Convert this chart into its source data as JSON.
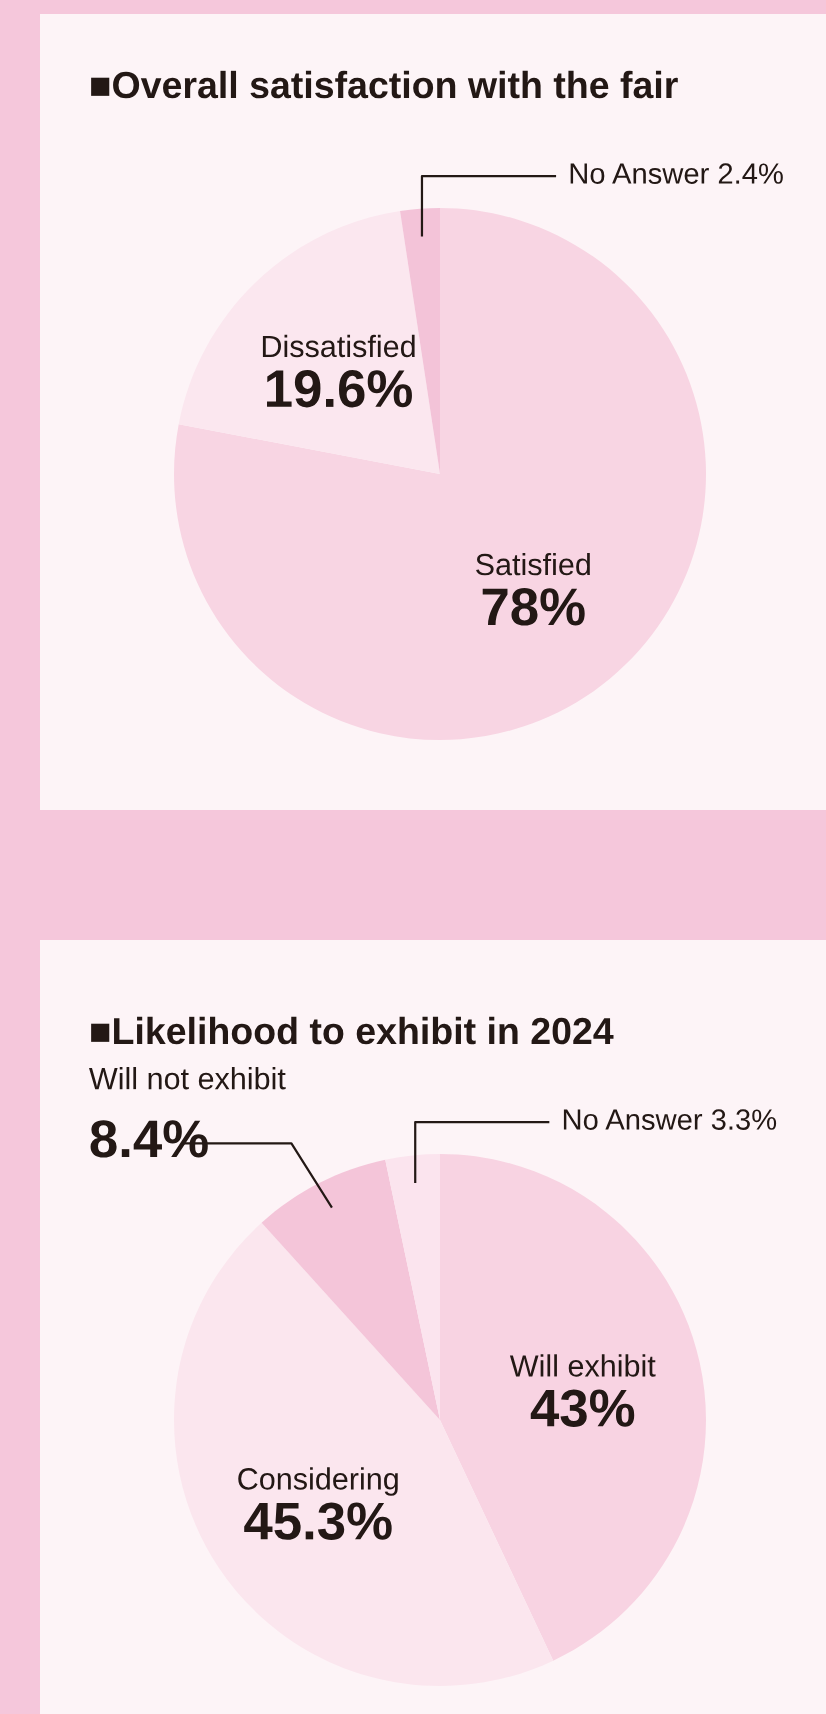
{
  "chart_data": [
    {
      "type": "pie",
      "title": "■Overall satisfaction with the fair",
      "categories": [
        "Satisfied",
        "Dissatisfied",
        "No Answer"
      ],
      "values": [
        78,
        19.6,
        2.4
      ],
      "value_labels": [
        "78%",
        "19.6%",
        "2.4%"
      ],
      "colors": [
        "#f8d5e3",
        "#fbe7ef",
        "#f3c3d8"
      ]
    },
    {
      "type": "pie",
      "title": "■Likelihood to exhibit in 2024",
      "categories": [
        "Will exhibit",
        "Considering",
        "Will not exhibit",
        "No Answer"
      ],
      "values": [
        43,
        45.3,
        8.4,
        3.3
      ],
      "value_labels": [
        "43%",
        "45.3%",
        "8.4%",
        "3.3%"
      ],
      "colors": [
        "#f8d3e2",
        "#fbe6ee",
        "#f4c5d9",
        "#fbe4ee"
      ]
    }
  ]
}
